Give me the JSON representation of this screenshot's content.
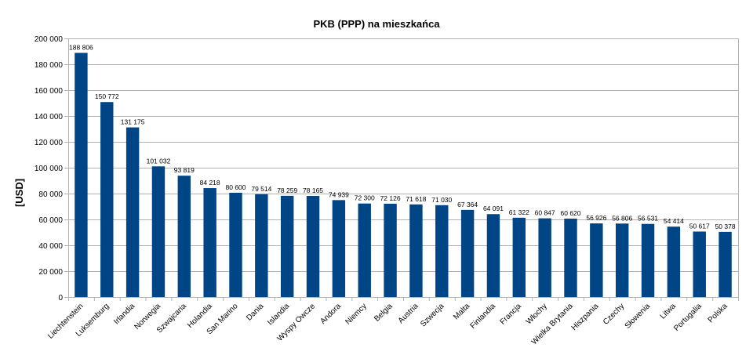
{
  "chart_data": {
    "type": "bar",
    "title": "PKB (PPP) na mieszkańca",
    "ylabel": "[USD]",
    "xlabel": "",
    "ylim": [
      0,
      200000
    ],
    "ytick_step": 20000,
    "ytick_labels": [
      "0",
      "20 000",
      "40 000",
      "60 000",
      "80 000",
      "100 000",
      "120 000",
      "140 000",
      "160 000",
      "180 000",
      "200 000"
    ],
    "grid": true,
    "bar_color": "#004586",
    "categories": [
      "Liechtenstein",
      "Luksemburg",
      "Irlandia",
      "Norwegia",
      "Szwajcaria",
      "Holandia",
      "San Marino",
      "Dania",
      "Islandia",
      "Wyspy Owcze",
      "Andora",
      "Niemcy",
      "Belgia",
      "Austria",
      "Szwecja",
      "Malta",
      "Finlandia",
      "Francja",
      "Włochy",
      "Wielka Brytania",
      "Hiszpania",
      "Czechy",
      "Słowenia",
      "Litwa",
      "Portugalia",
      "Polska"
    ],
    "values": [
      188806,
      150772,
      131175,
      101032,
      93819,
      84218,
      80600,
      79514,
      78259,
      78165,
      74939,
      72300,
      72126,
      71618,
      71030,
      67364,
      64091,
      61322,
      60847,
      60620,
      56926,
      56806,
      56531,
      54414,
      50617,
      50378
    ],
    "value_labels": [
      "188 806",
      "150 772",
      "131 175",
      "101 032",
      "93 819",
      "84 218",
      "80 600",
      "79 514",
      "78 259",
      "78 165",
      "74 939",
      "72 300",
      "72 126",
      "71 618",
      "71 030",
      "67 364",
      "64 091",
      "61 322",
      "60 847",
      "60 620",
      "56 926",
      "56 806",
      "56 531",
      "54 414",
      "50 617",
      "50 378"
    ]
  }
}
